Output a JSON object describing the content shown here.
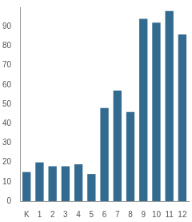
{
  "chart_data": {
    "type": "bar",
    "categories": [
      "K",
      "1",
      "2",
      "3",
      "4",
      "5",
      "6",
      "7",
      "8",
      "9",
      "10",
      "11",
      "12"
    ],
    "values": [
      15,
      20,
      18,
      18,
      19,
      14,
      48,
      57,
      46,
      94,
      92,
      98,
      86
    ],
    "color": "#336a90",
    "ylim": [
      0,
      100
    ],
    "yticks": [
      0,
      10,
      20,
      30,
      40,
      50,
      60,
      70,
      80,
      90
    ],
    "grid": false
  }
}
